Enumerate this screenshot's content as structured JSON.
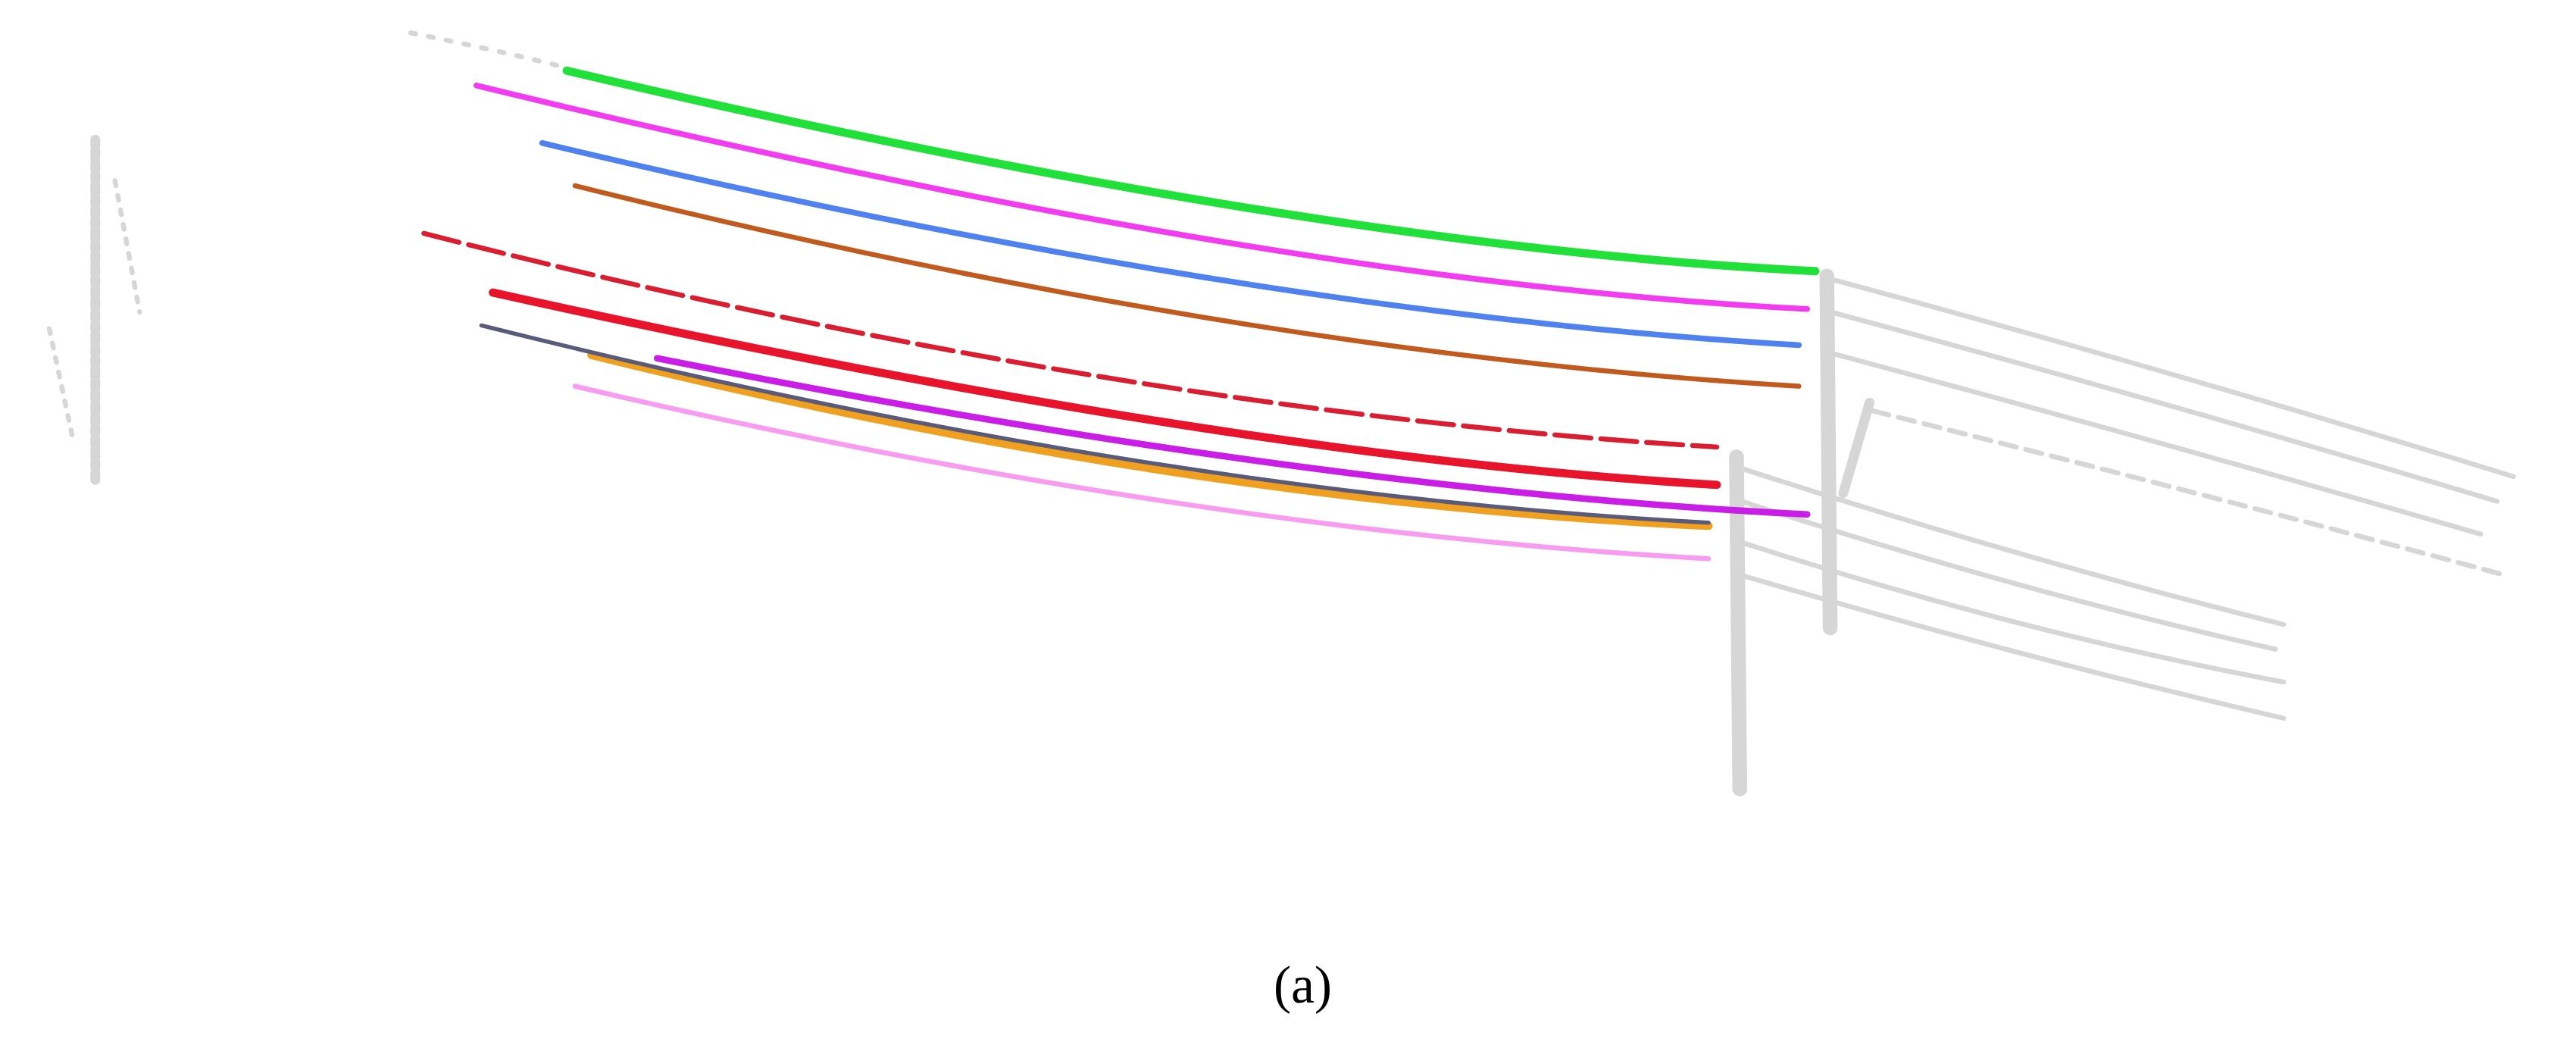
{
  "caption": "(a)"
}
